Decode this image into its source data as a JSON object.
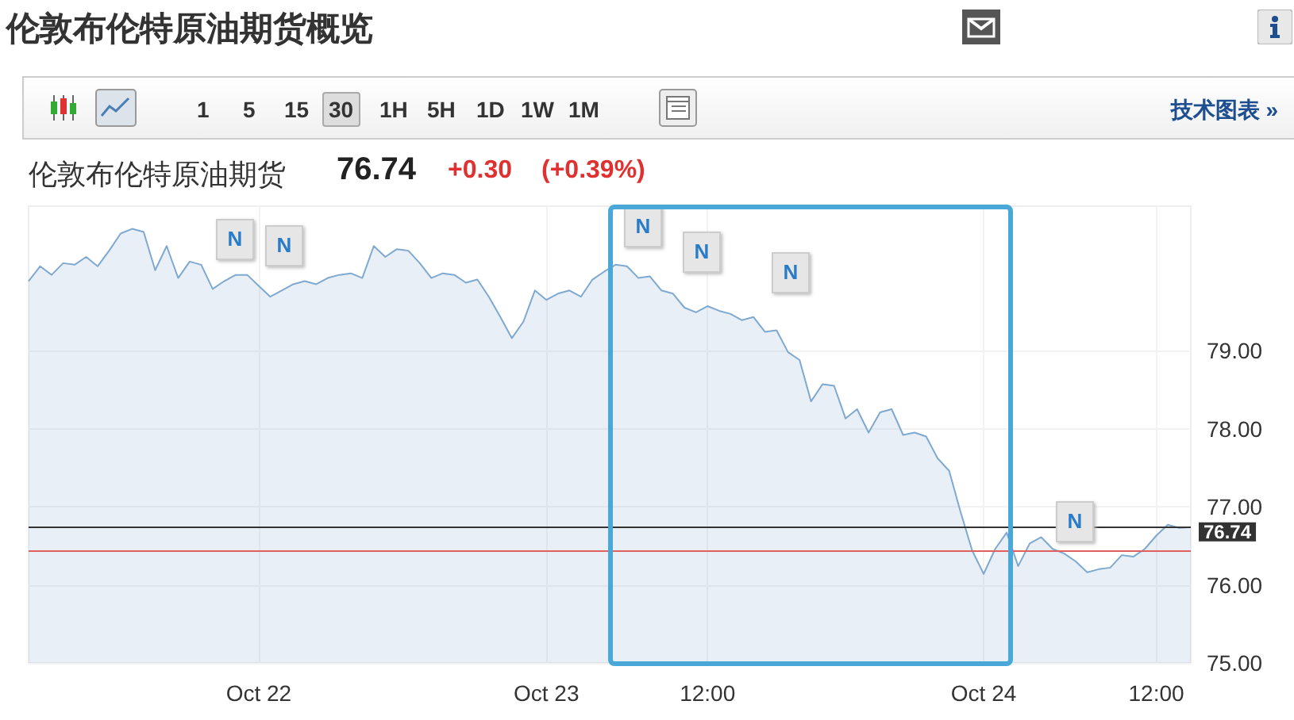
{
  "chart_data": {
    "type": "area",
    "title": "伦敦布伦特原油期货概览",
    "subtitle": "伦敦布伦特原油期货",
    "annotations": [
      "76.74",
      "+0.30",
      "(+0.39%)",
      "15",
      "1",
      "5",
      "30",
      "1H",
      "5H",
      "1D",
      "1W",
      "1M",
      "技术图表 »",
      "N",
      "N",
      "N",
      "N",
      "N",
      "N"
    ],
    "categories": [
      null,
      null,
      null,
      null,
      null,
      null,
      null,
      null,
      null,
      null,
      null,
      null,
      null,
      null,
      null,
      null,
      null,
      null,
      null,
      null,
      "Oct 22",
      null,
      null,
      null,
      null,
      null,
      null,
      null,
      null,
      null,
      null,
      null,
      null,
      null,
      null,
      null,
      null,
      null,
      null,
      null,
      null,
      null,
      null,
      null,
      null,
      "Oct 23",
      null,
      null,
      null,
      null,
      null,
      null,
      null,
      null,
      null,
      null,
      null,
      null,
      null,
      "12:00",
      null,
      null,
      null,
      null,
      null,
      null,
      null,
      null,
      null,
      null,
      null,
      null,
      null,
      null,
      null,
      null,
      null,
      null,
      null,
      null,
      null,
      null,
      null,
      "Oct 24",
      null,
      null,
      null,
      null,
      null,
      null,
      null,
      null,
      null,
      null,
      null,
      null,
      null,
      null,
      "12:00",
      null,
      null,
      null
    ],
    "series": [
      {
        "color": "#7fa9d0",
        "values": [
          79.89,
          80.08,
          79.97,
          80.12,
          80.1,
          80.2,
          80.08,
          80.28,
          80.5,
          80.56,
          80.52,
          80.03,
          80.34,
          79.93,
          80.14,
          80.1,
          79.79,
          79.89,
          79.97,
          79.97,
          79.83,
          79.69,
          79.77,
          79.85,
          79.89,
          79.85,
          79.93,
          79.97,
          79.99,
          79.93,
          80.34,
          80.2,
          80.3,
          80.28,
          80.12,
          79.93,
          79.99,
          79.97,
          79.87,
          79.91,
          79.69,
          79.43,
          79.16,
          79.37,
          79.77,
          79.65,
          79.73,
          79.77,
          79.69,
          79.91,
          80.01,
          80.1,
          80.08,
          79.93,
          79.95,
          79.77,
          79.73,
          79.55,
          79.49,
          79.57,
          79.51,
          79.47,
          79.39,
          79.43,
          79.24,
          79.26,
          78.98,
          78.88,
          78.35,
          78.57,
          78.55,
          78.13,
          78.25,
          77.95,
          78.21,
          78.25,
          77.92,
          77.95,
          77.9,
          77.62,
          77.46,
          76.93,
          76.44,
          76.14,
          76.46,
          76.67,
          76.24,
          76.53,
          76.61,
          76.46,
          76.4,
          76.3,
          76.16,
          76.2,
          76.22,
          76.38,
          76.36,
          76.46,
          76.63,
          76.77,
          76.73,
          76.74
        ]
      }
    ],
    "ylim": [
      75,
      80.85
    ],
    "yticks": [
      {
        "value": 75,
        "label": "75.00"
      },
      {
        "value": 76,
        "label": "76.00"
      },
      {
        "value": 77,
        "label": "77.00"
      },
      {
        "value": 78,
        "label": "78.00"
      },
      {
        "value": 79,
        "label": "79.00"
      }
    ],
    "ref_lines": [
      {
        "axis": "y",
        "value": 76.74,
        "label": "76.74",
        "color": "#333333"
      },
      {
        "axis": "y",
        "value": 76.44,
        "color": "#e06060"
      }
    ],
    "grid": true,
    "marker": "none"
  }
}
